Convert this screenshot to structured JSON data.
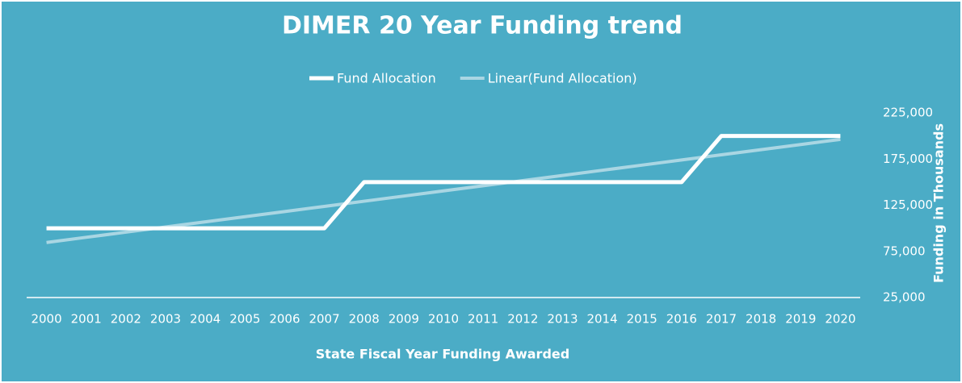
{
  "chart_data": {
    "type": "line",
    "title": "DIMER 20 Year Funding trend",
    "x_label": "State Fiscal Year Funding Awarded",
    "y_label": "Funding in Thousands",
    "categories": [
      "2000",
      "2001",
      "2002",
      "2003",
      "2004",
      "2005",
      "2006",
      "2007",
      "2008",
      "2009",
      "2010",
      "2011",
      "2012",
      "2013",
      "2014",
      "2015",
      "2016",
      "2017",
      "2018",
      "2019",
      "2020"
    ],
    "series": [
      {
        "name": "Fund Allocation",
        "color": "#ffffff",
        "values": [
          100000,
          100000,
          100000,
          100000,
          100000,
          100000,
          100000,
          100000,
          150000,
          150000,
          150000,
          150000,
          150000,
          150000,
          150000,
          150000,
          150000,
          200000,
          200000,
          200000,
          200000
        ]
      },
      {
        "name": "Linear(Fund Allocation)",
        "color": "#a9d6e3",
        "values": [
          84632,
          90216,
          95801,
          101385,
          106969,
          112554,
          118138,
          123723,
          129307,
          134892,
          140476,
          146061,
          151645,
          157229,
          162814,
          168398,
          173983,
          179567,
          185152,
          190736,
          196320
        ]
      }
    ],
    "ylim": [
      25000,
      225000
    ],
    "yticks": [
      {
        "value": 25000,
        "label": "25,000"
      },
      {
        "value": 75000,
        "label": "75,000"
      },
      {
        "value": 125000,
        "label": "125,000"
      },
      {
        "value": 175000,
        "label": "175,000"
      },
      {
        "value": 225000,
        "label": "225,000"
      }
    ],
    "y_axis_side": "right",
    "legend": "top",
    "background": "#4bacc6"
  }
}
